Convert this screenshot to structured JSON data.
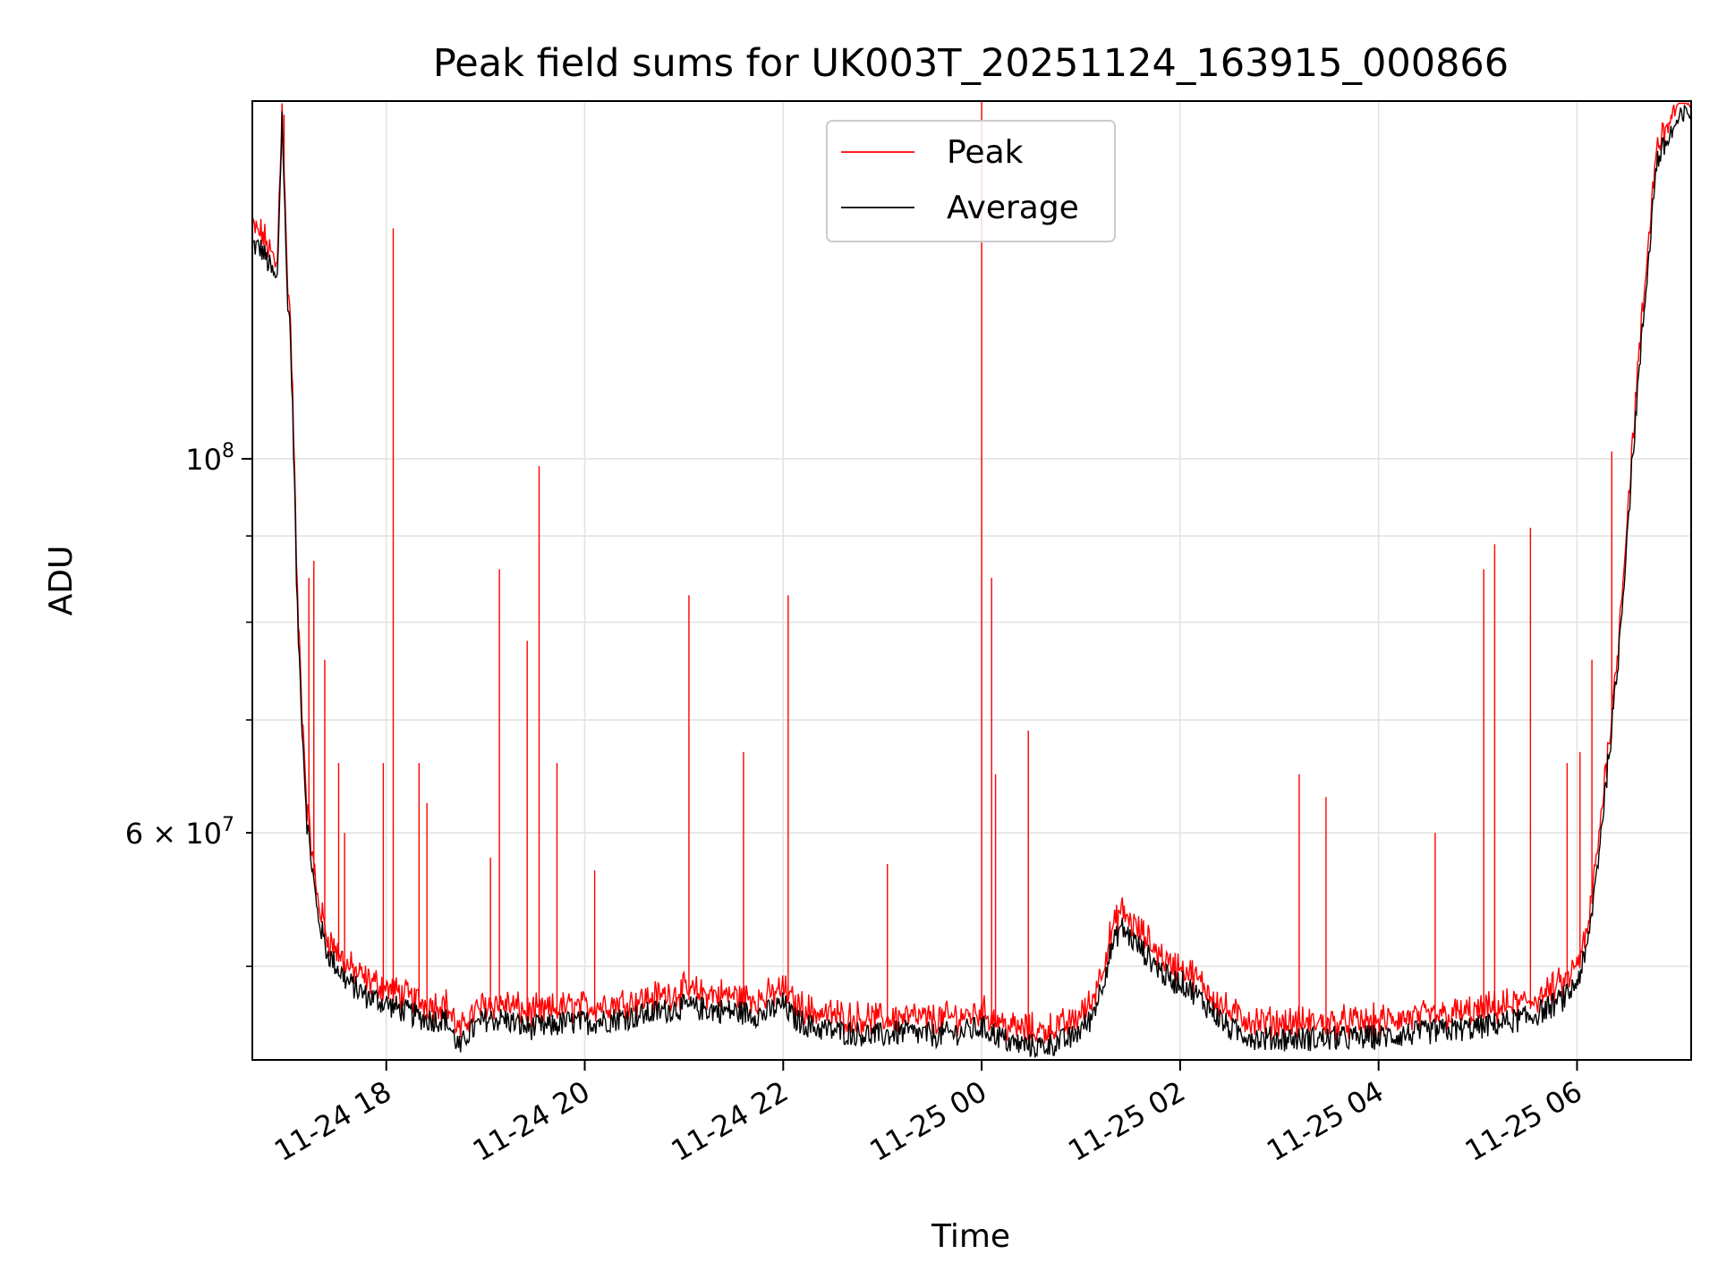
{
  "chart_data": {
    "type": "line",
    "title": "Peak field sums for UK003T_20251124_163915_000866",
    "xlabel": "Time",
    "ylabel": "ADU",
    "yscale": "log",
    "ylim": [
      44000000,
      163000000
    ],
    "xlim_hours": [
      -1.35,
      13.15
    ],
    "x_ticks": [
      {
        "hour": 0,
        "label": "11-24 18"
      },
      {
        "hour": 2,
        "label": "11-24 20"
      },
      {
        "hour": 4,
        "label": "11-24 22"
      },
      {
        "hour": 6,
        "label": "11-25 00"
      },
      {
        "hour": 8,
        "label": "11-25 02"
      },
      {
        "hour": 10,
        "label": "11-25 04"
      },
      {
        "hour": 12,
        "label": "11-25 06"
      }
    ],
    "y_major_ticks": [
      {
        "value": 100000000,
        "label": "10",
        "exp": "8"
      }
    ],
    "y_labeled_minor_ticks": [
      {
        "value": 60000000,
        "label": "6 × 10",
        "exp": "7"
      }
    ],
    "y_minor_ticks": [
      50000000,
      70000000,
      80000000,
      90000000
    ],
    "grid": true,
    "legend": {
      "position": "upper-center",
      "entries": [
        {
          "name": "Peak",
          "color": "#ff0000"
        },
        {
          "name": "Average",
          "color": "#000000"
        }
      ]
    },
    "series": [
      {
        "name": "Average",
        "color": "#000000",
        "x_hours": [
          -1.35,
          -1.25,
          -1.1,
          -1.05,
          -1.0,
          -0.97,
          -0.93,
          -0.9,
          -0.85,
          -0.8,
          -0.7,
          -0.6,
          -0.5,
          -0.4,
          -0.3,
          -0.2,
          -0.1,
          0.0,
          0.2,
          0.4,
          0.6,
          0.75,
          0.8,
          1.0,
          1.2,
          1.4,
          1.6,
          1.8,
          2.0,
          2.5,
          3.0,
          3.5,
          3.8,
          4.0,
          4.1,
          4.3,
          4.6,
          5.0,
          5.2,
          5.5,
          5.8,
          6.0,
          6.1,
          6.3,
          6.6,
          6.9,
          7.1,
          7.2,
          7.3,
          7.4,
          7.5,
          7.7,
          7.9,
          8.0,
          8.1,
          8.3,
          8.5,
          8.8,
          9.0,
          9.5,
          10.0,
          10.5,
          11.0,
          11.5,
          11.7,
          11.9,
          12.0,
          12.1,
          12.2,
          12.4,
          12.6,
          12.8,
          13.0,
          13.15
        ],
        "values": [
          134000000,
          133000000,
          127000000,
          160000000,
          126000000,
          120000000,
          100000000,
          82000000,
          70000000,
          61000000,
          54000000,
          51000000,
          50000000,
          49000000,
          48500000,
          48000000,
          47800000,
          47500000,
          47000000,
          46500000,
          46500000,
          44600000,
          45500000,
          46500000,
          46500000,
          46000000,
          46000000,
          46300000,
          46300000,
          46700000,
          47300000,
          47000000,
          46800000,
          47500000,
          46600000,
          46000000,
          45700000,
          45500000,
          45700000,
          45500000,
          45700000,
          46000000,
          45700000,
          45000000,
          44800000,
          45300000,
          46500000,
          48500000,
          51000000,
          52800000,
          52000000,
          50500000,
          49000000,
          49000000,
          48500000,
          47200000,
          45900000,
          45300000,
          45300000,
          45300000,
          45400000,
          45700000,
          46000000,
          46600000,
          47200000,
          48000000,
          49000000,
          51000000,
          57000000,
          74000000,
          108000000,
          150000000,
          158000000,
          161000000
        ]
      },
      {
        "name": "Peak",
        "color": "#ff0000",
        "offset_ratio": 1.012,
        "spikes": [
          {
            "hour": -1.03,
            "value": 160000000
          },
          {
            "hour": -0.78,
            "value": 85000000
          },
          {
            "hour": -0.73,
            "value": 87000000
          },
          {
            "hour": -0.62,
            "value": 76000000
          },
          {
            "hour": -0.48,
            "value": 66000000
          },
          {
            "hour": -0.42,
            "value": 60000000
          },
          {
            "hour": -0.03,
            "value": 66000000
          },
          {
            "hour": 0.07,
            "value": 137000000
          },
          {
            "hour": 0.33,
            "value": 66000000
          },
          {
            "hour": 0.41,
            "value": 62500000
          },
          {
            "hour": 1.05,
            "value": 58000000
          },
          {
            "hour": 1.14,
            "value": 86000000
          },
          {
            "hour": 1.42,
            "value": 78000000
          },
          {
            "hour": 1.54,
            "value": 99000000
          },
          {
            "hour": 1.72,
            "value": 66000000
          },
          {
            "hour": 2.1,
            "value": 57000000
          },
          {
            "hour": 3.05,
            "value": 83000000
          },
          {
            "hour": 3.6,
            "value": 67000000
          },
          {
            "hour": 4.05,
            "value": 83000000
          },
          {
            "hour": 5.05,
            "value": 57500000
          },
          {
            "hour": 6.0,
            "value": 163000000
          },
          {
            "hour": 6.1,
            "value": 85000000
          },
          {
            "hour": 6.14,
            "value": 65000000
          },
          {
            "hour": 6.47,
            "value": 69000000
          },
          {
            "hour": 9.2,
            "value": 65000000
          },
          {
            "hour": 9.47,
            "value": 63000000
          },
          {
            "hour": 10.57,
            "value": 60000000
          },
          {
            "hour": 11.06,
            "value": 86000000
          },
          {
            "hour": 11.17,
            "value": 89000000
          },
          {
            "hour": 11.53,
            "value": 91000000
          },
          {
            "hour": 11.9,
            "value": 66000000
          },
          {
            "hour": 12.03,
            "value": 67000000
          },
          {
            "hour": 12.15,
            "value": 76000000
          },
          {
            "hour": 12.35,
            "value": 101000000
          }
        ]
      }
    ]
  }
}
